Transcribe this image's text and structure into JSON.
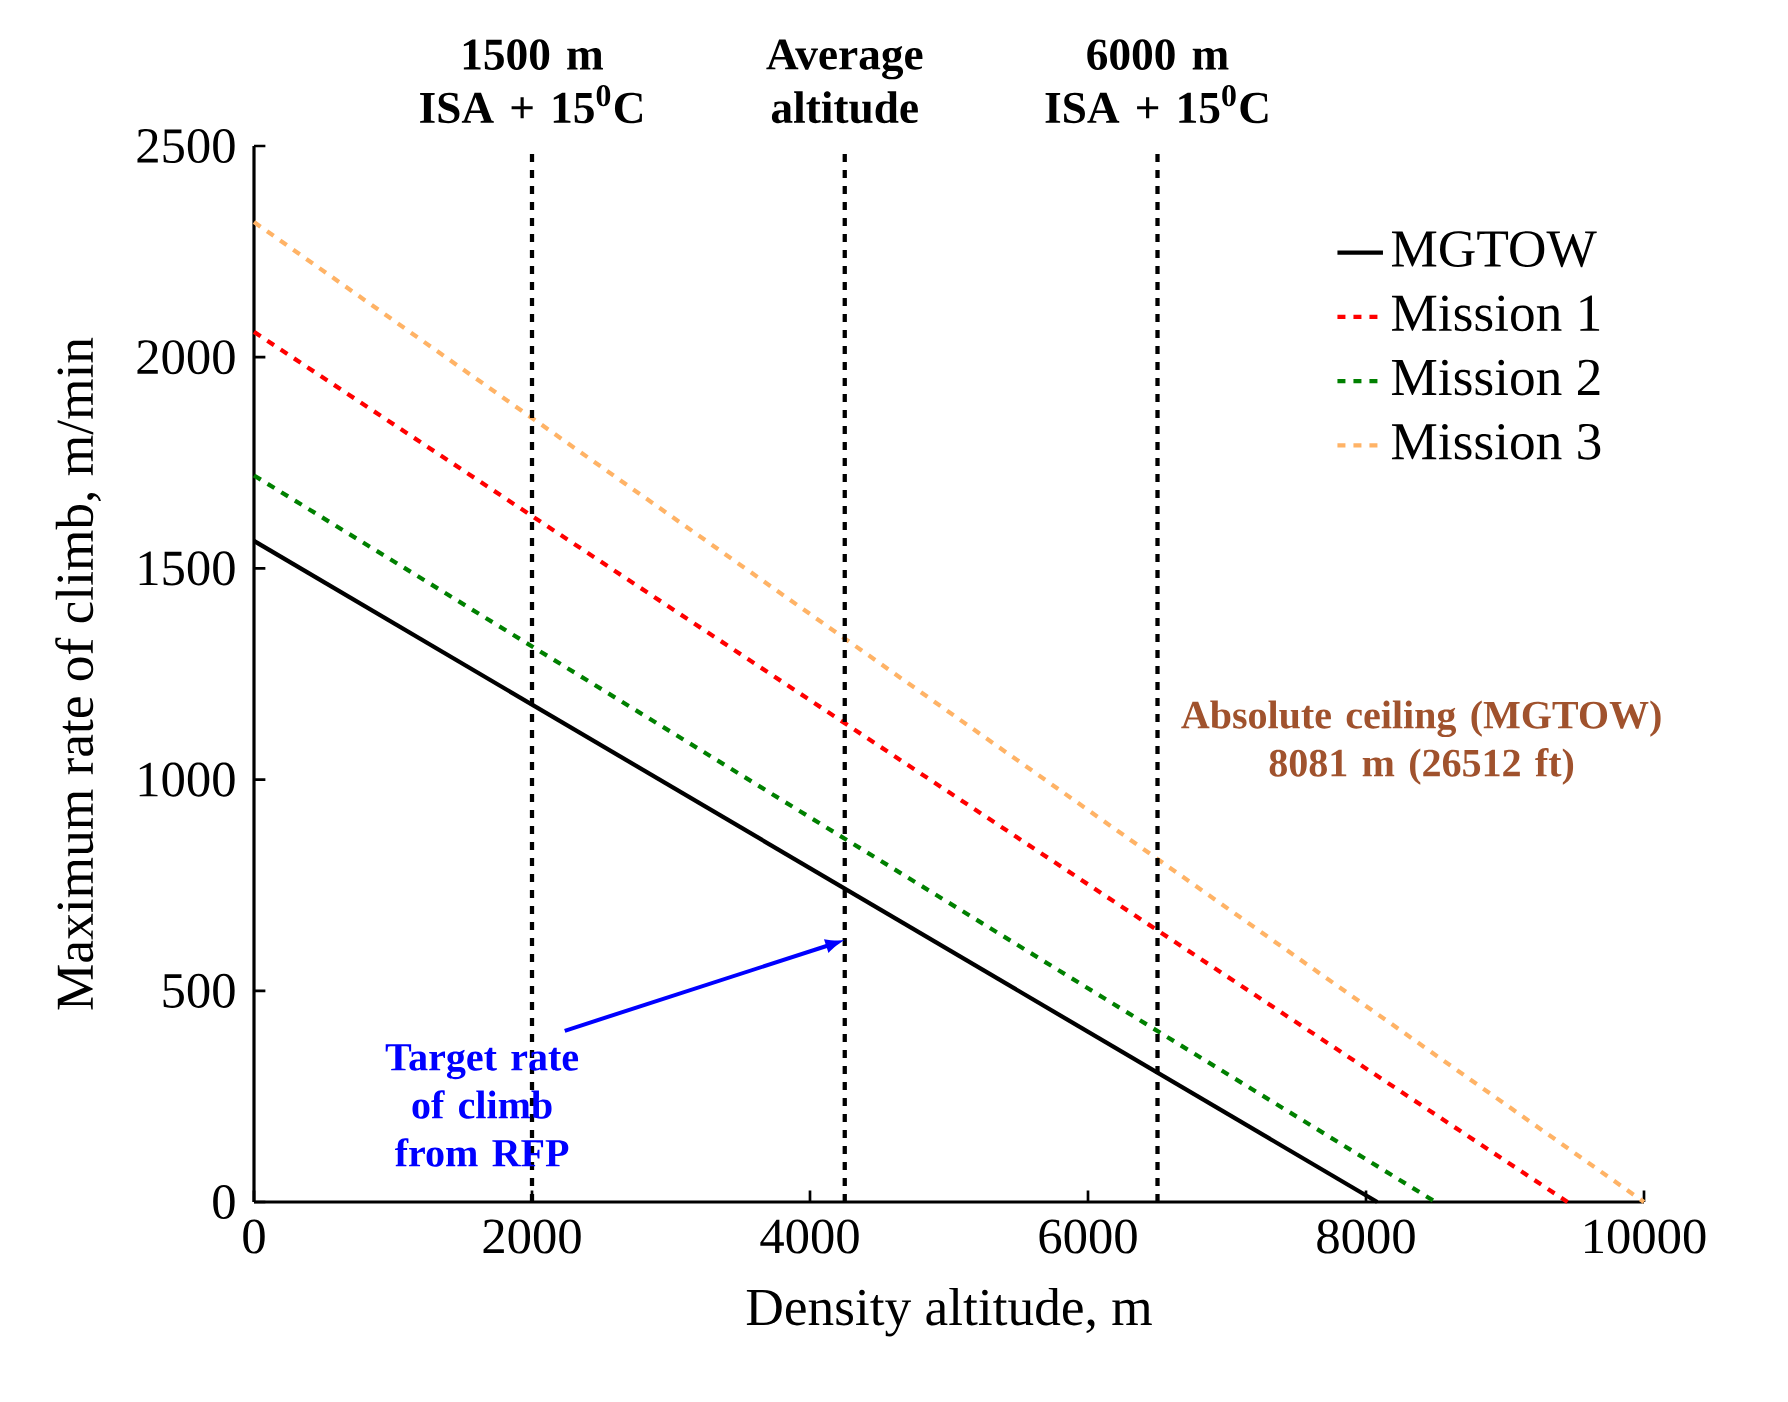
{
  "chart_data": {
    "type": "line",
    "xlabel": "Density altitude, m",
    "ylabel": "Maximum rate of climb, m/min",
    "xlim": [
      0,
      10000
    ],
    "ylim": [
      0,
      2500
    ],
    "xticks": [
      0,
      2000,
      4000,
      6000,
      8000,
      10000
    ],
    "yticks": [
      0,
      500,
      1000,
      1500,
      2000,
      2500
    ],
    "series": [
      {
        "name": "MGTOW",
        "color": "#000000",
        "line_style": "solid",
        "x": [
          0,
          8081
        ],
        "values": [
          1565,
          0
        ]
      },
      {
        "name": "Mission 1",
        "color": "#ff0000",
        "line_style": "dashed",
        "x": [
          0,
          9450
        ],
        "values": [
          2060,
          0
        ]
      },
      {
        "name": "Mission 2",
        "color": "#008000",
        "line_style": "dashed",
        "x": [
          0,
          8500
        ],
        "values": [
          1720,
          0
        ]
      },
      {
        "name": "Mission 3",
        "color": "#ffb366",
        "line_style": "dashed",
        "x": [
          0,
          10000
        ],
        "values": [
          2320,
          0
        ]
      }
    ],
    "ref_lines": [
      {
        "axis": "x",
        "value": 2000,
        "label": "1500 m ISA + 15$^{0}$C",
        "color": "#000000",
        "line_style": "dashed"
      },
      {
        "axis": "x",
        "value": 4250,
        "label": "Average altitude",
        "color": "#000000",
        "line_style": "dashed"
      },
      {
        "axis": "x",
        "value": 6500,
        "label": "6000 m ISA + 15$^{0}$C",
        "color": "#000000",
        "line_style": "dashed"
      }
    ],
    "annotations": [
      "Absolute ceiling (MGTOW) 8081 m (26512 ft)",
      {
        "text": "Target rate of climb from RFP",
        "x": 4250,
        "y": 620
      }
    ],
    "legend": "top right",
    "marker": "none",
    "grid": false
  }
}
